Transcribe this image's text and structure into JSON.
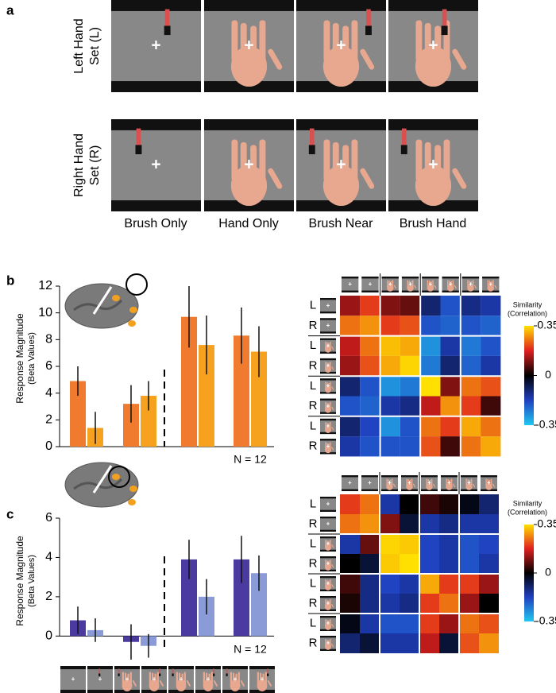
{
  "panel_labels": [
    "a",
    "b",
    "c"
  ],
  "stimuli": {
    "rows": [
      [
        "Left Hand",
        "Set (L)"
      ],
      [
        "Right Hand",
        "Set (R)"
      ]
    ],
    "columns": [
      "Brush Only",
      "Hand Only",
      "Brush Near",
      "Brush Hand"
    ]
  },
  "chart_data": [
    {
      "type": "bar",
      "ylabel": [
        "Response Magnitude",
        "(Beta Values)"
      ],
      "annotation": "N = 12",
      "categories": [
        null,
        null,
        null,
        null,
        null,
        null,
        null,
        null
      ],
      "values": [
        4.9,
        1.4,
        3.2,
        3.8,
        9.7,
        7.6,
        8.3,
        7.1
      ],
      "errors": [
        1.1,
        1.2,
        1.4,
        1.1,
        2.3,
        2.2,
        2.1,
        1.9
      ],
      "colors": [
        "#f07a2e",
        "#f7a21e",
        "#f07a2e",
        "#f7a21e",
        "#f07a2e",
        "#f7a21e",
        "#f07a2e",
        "#f7a21e"
      ],
      "ylim": [
        0,
        12
      ],
      "yticks": [
        0,
        2,
        4,
        6,
        8,
        10,
        12
      ]
    },
    {
      "type": "heatmap",
      "row_labels": [
        "L",
        "R",
        "L",
        "R",
        "L",
        "R",
        "L",
        "R"
      ],
      "matrix": [
        [
          0.12,
          0.2,
          0.1,
          0.08,
          -0.1,
          -0.2,
          -0.12,
          -0.15
        ],
        [
          0.25,
          0.28,
          0.2,
          0.22,
          -0.2,
          -0.22,
          -0.2,
          -0.22
        ],
        [
          0.15,
          0.25,
          0.32,
          0.3,
          -0.28,
          -0.15,
          -0.25,
          -0.2
        ],
        [
          0.12,
          0.22,
          0.3,
          0.34,
          -0.25,
          -0.1,
          -0.22,
          -0.15
        ],
        [
          -0.1,
          -0.2,
          -0.28,
          -0.25,
          0.35,
          0.1,
          0.25,
          0.22
        ],
        [
          -0.2,
          -0.22,
          -0.15,
          -0.12,
          0.15,
          0.28,
          0.2,
          0.05
        ],
        [
          -0.1,
          -0.18,
          -0.28,
          -0.2,
          0.25,
          0.2,
          0.3,
          0.25
        ],
        [
          -0.15,
          -0.2,
          -0.2,
          -0.2,
          0.22,
          0.05,
          0.25,
          0.3
        ]
      ],
      "clim": [
        -0.35,
        0.35
      ],
      "cticks": [
        0.35,
        0,
        -0.35
      ],
      "colorbar_label": [
        "Similarity",
        "(Correlation)"
      ]
    },
    {
      "type": "bar",
      "ylabel": [
        "Response Magnitude",
        "(Beta Values)"
      ],
      "annotation": "N = 12",
      "categories": [
        null,
        null,
        null,
        null,
        null,
        null,
        null,
        null
      ],
      "values": [
        0.8,
        0.3,
        -0.3,
        -0.5,
        3.9,
        2.0,
        3.9,
        3.2
      ],
      "errors": [
        0.7,
        0.6,
        0.9,
        0.6,
        1.0,
        0.9,
        1.2,
        0.9
      ],
      "colors": [
        "#4b3aa0",
        "#8a9bd8",
        "#4b3aa0",
        "#8a9bd8",
        "#4b3aa0",
        "#8a9bd8",
        "#4b3aa0",
        "#8a9bd8"
      ],
      "ylim": [
        -1.2,
        6
      ],
      "yticks": [
        0,
        2,
        4,
        6
      ]
    },
    {
      "type": "heatmap",
      "row_labels": [
        "L",
        "R",
        "L",
        "R",
        "L",
        "R",
        "L",
        "R"
      ],
      "matrix": [
        [
          0.2,
          0.25,
          -0.15,
          0.0,
          0.05,
          0.02,
          -0.02,
          -0.1
        ],
        [
          0.25,
          0.28,
          0.1,
          -0.05,
          -0.15,
          -0.12,
          -0.15,
          -0.15
        ],
        [
          -0.15,
          0.08,
          0.34,
          0.33,
          -0.18,
          -0.15,
          -0.2,
          -0.18
        ],
        [
          0.0,
          -0.05,
          0.33,
          0.35,
          -0.18,
          -0.15,
          -0.2,
          -0.15
        ],
        [
          0.05,
          -0.12,
          -0.18,
          -0.15,
          0.3,
          0.2,
          0.2,
          0.12
        ],
        [
          0.02,
          -0.12,
          -0.15,
          -0.12,
          0.2,
          0.25,
          0.12,
          0.0
        ],
        [
          -0.02,
          -0.15,
          -0.2,
          -0.2,
          0.2,
          0.12,
          0.25,
          0.22
        ],
        [
          -0.1,
          -0.05,
          -0.15,
          -0.15,
          0.15,
          -0.05,
          0.22,
          0.28
        ]
      ],
      "clim": [
        -0.35,
        0.35
      ],
      "cticks": [
        0.35,
        0,
        -0.35
      ],
      "colorbar_label": [
        "Similarity",
        "(Correlation)"
      ]
    }
  ]
}
